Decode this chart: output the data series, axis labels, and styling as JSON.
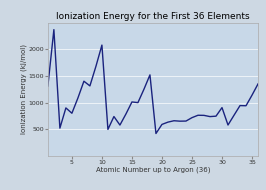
{
  "title": "Ionization Energy for the First 36 Elements",
  "xlabel": "Atomic Number up to Argon (36)",
  "ylabel": "Ionization Energy (kJ/mol)",
  "background_color": "#cdd8e3",
  "plot_bg_color": "#c8d8e8",
  "line_color": "#1a237e",
  "atomic_numbers": [
    1,
    2,
    3,
    4,
    5,
    6,
    7,
    8,
    9,
    10,
    11,
    12,
    13,
    14,
    15,
    16,
    17,
    18,
    19,
    20,
    21,
    22,
    23,
    24,
    25,
    26,
    27,
    28,
    29,
    30,
    31,
    32,
    33,
    34,
    35,
    36
  ],
  "ionization_energies": [
    1312,
    2372,
    520,
    900,
    800,
    1086,
    1402,
    1314,
    1681,
    2081,
    496,
    738,
    578,
    786,
    1012,
    1000,
    1251,
    1521,
    419,
    590,
    633,
    659,
    651,
    653,
    717,
    762,
    760,
    737,
    745,
    906,
    579,
    762,
    944,
    941,
    1140,
    1351
  ],
  "xlim": [
    1,
    36
  ],
  "ylim": [
    0,
    2500
  ],
  "yticks": [
    500,
    1000,
    1500,
    2000
  ],
  "xticks": [
    5,
    10,
    15,
    20,
    25,
    30,
    35
  ],
  "title_fontsize": 6.5,
  "label_fontsize": 5,
  "tick_fontsize": 4.5,
  "line_width": 1.0
}
